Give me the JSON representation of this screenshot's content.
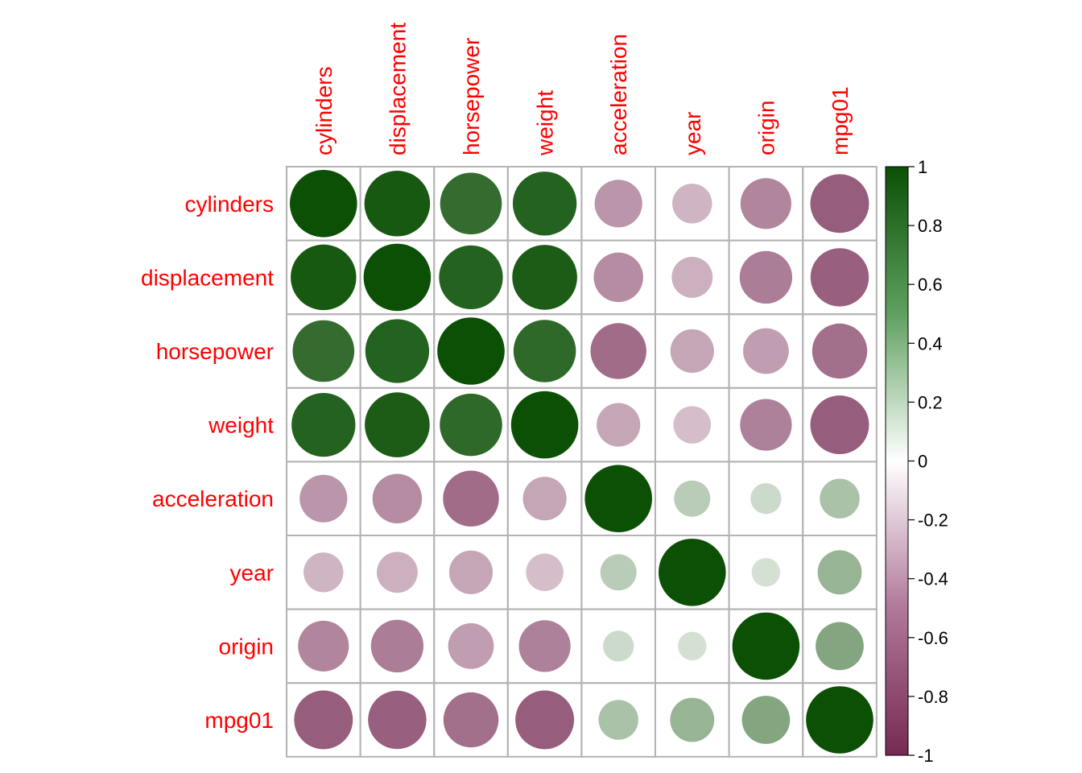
{
  "chart_data": {
    "type": "heatmap",
    "variables": [
      "cylinders",
      "displacement",
      "horsepower",
      "weight",
      "acceleration",
      "year",
      "origin",
      "mpg01"
    ],
    "matrix": [
      [
        1.0,
        0.95,
        0.84,
        0.9,
        -0.5,
        -0.35,
        -0.57,
        -0.76
      ],
      [
        0.95,
        1.0,
        0.9,
        0.93,
        -0.54,
        -0.37,
        -0.61,
        -0.75
      ],
      [
        0.84,
        0.9,
        1.0,
        0.86,
        -0.69,
        -0.42,
        -0.46,
        -0.67
      ],
      [
        0.9,
        0.93,
        0.86,
        1.0,
        -0.42,
        -0.31,
        -0.59,
        -0.76
      ],
      [
        -0.5,
        -0.54,
        -0.69,
        -0.42,
        1.0,
        0.29,
        0.21,
        0.35
      ],
      [
        -0.35,
        -0.37,
        -0.42,
        -0.31,
        0.29,
        1.0,
        0.18,
        0.43
      ],
      [
        -0.57,
        -0.61,
        -0.46,
        -0.59,
        0.21,
        0.18,
        1.0,
        0.51
      ],
      [
        -0.76,
        -0.75,
        -0.67,
        -0.76,
        0.35,
        0.43,
        0.51,
        1.0
      ]
    ],
    "colorbar": {
      "ticks": [
        "1",
        "0.8",
        "0.6",
        "0.4",
        "0.2",
        "0",
        "-0.2",
        "-0.4",
        "-0.6",
        "-0.8",
        "-1"
      ],
      "range": [
        -1,
        1
      ],
      "colors": {
        "negative": "#762a53",
        "zero": "#ffffff",
        "positive": "#0c5006"
      }
    },
    "label_color": "#ff0000",
    "grid_color": "#b3b3b3"
  }
}
